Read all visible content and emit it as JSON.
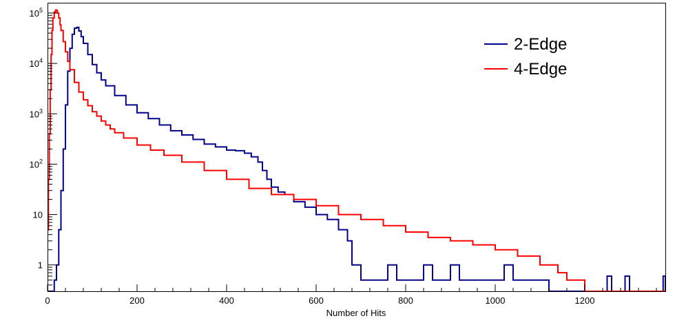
{
  "chart_data": {
    "type": "line",
    "title": "",
    "xlabel": "Number of Hits",
    "ylabel": "",
    "xlim": [
      0,
      1380
    ],
    "ylim": [
      0.3,
      160000
    ],
    "yscale": "log",
    "x_ticks": [
      0,
      200,
      400,
      600,
      800,
      1000,
      1200
    ],
    "x_tick_labels": [
      "0",
      "200",
      "400",
      "600",
      "800",
      "1000",
      "1200"
    ],
    "y_ticks": [
      1,
      10,
      100,
      1000,
      10000,
      100000
    ],
    "y_tick_labels": [
      {
        "base": "1",
        "exp": ""
      },
      {
        "base": "10",
        "exp": ""
      },
      {
        "base": "10",
        "exp": "2"
      },
      {
        "base": "10",
        "exp": "3"
      },
      {
        "base": "10",
        "exp": "4"
      },
      {
        "base": "10",
        "exp": "5"
      }
    ],
    "grid": false,
    "legend_position": "top-right",
    "series": [
      {
        "name": "2-Edge",
        "color": "#00008b",
        "x": [
          0,
          15,
          20,
          25,
          30,
          35,
          40,
          45,
          50,
          55,
          60,
          65,
          70,
          75,
          80,
          90,
          100,
          110,
          120,
          130,
          150,
          175,
          200,
          225,
          250,
          275,
          300,
          325,
          350,
          375,
          400,
          420,
          440,
          455,
          470,
          480,
          490,
          500,
          515,
          530,
          550,
          575,
          600,
          625,
          650,
          670,
          680,
          700,
          720,
          740,
          760,
          780,
          800,
          820,
          840,
          860,
          880,
          900,
          920,
          940,
          960,
          980,
          1000,
          1020,
          1040,
          1060,
          1080,
          1100,
          1120,
          1140,
          1160,
          1180,
          1200,
          1220,
          1240,
          1250,
          1260,
          1280,
          1290,
          1300,
          1320,
          1340,
          1360,
          1375,
          1380
        ],
        "y": [
          0.3,
          0.5,
          1,
          5,
          30,
          200,
          1500,
          7000,
          20000,
          38000,
          50000,
          52000,
          44000,
          34000,
          25000,
          15000,
          9500,
          6500,
          4700,
          3600,
          2300,
          1500,
          1050,
          800,
          600,
          460,
          380,
          310,
          250,
          220,
          190,
          185,
          165,
          140,
          110,
          75,
          50,
          35,
          28,
          25,
          18,
          14,
          10,
          8,
          5,
          3,
          1,
          0.5,
          0.5,
          0.5,
          1,
          0.5,
          0.5,
          0.5,
          1,
          0.5,
          0.5,
          1,
          0.5,
          0.5,
          0.5,
          0.5,
          0.5,
          1,
          0.5,
          0.5,
          0.5,
          0.5,
          0.3,
          0.3,
          0.3,
          0.3,
          0.3,
          0.3,
          0.3,
          0.6,
          0.3,
          0.3,
          0.6,
          0.3,
          0.3,
          0.3,
          0.3,
          0.6,
          0.3
        ]
      },
      {
        "name": "4-Edge",
        "color": "#ff0000",
        "x": [
          0,
          2,
          4,
          6,
          8,
          10,
          12,
          15,
          18,
          20,
          22,
          25,
          28,
          30,
          35,
          40,
          45,
          50,
          60,
          70,
          80,
          90,
          100,
          110,
          120,
          130,
          140,
          150,
          170,
          200,
          230,
          260,
          300,
          350,
          400,
          450,
          500,
          550,
          600,
          650,
          700,
          750,
          800,
          850,
          900,
          950,
          1000,
          1050,
          1100,
          1120,
          1140,
          1160,
          1180,
          1200,
          1250,
          1300,
          1350,
          1380
        ],
        "y": [
          5,
          50,
          400,
          3000,
          15000,
          45000,
          80000,
          105000,
          115000,
          112000,
          100000,
          80000,
          58000,
          45000,
          27000,
          17000,
          11000,
          7500,
          4200,
          2700,
          1900,
          1450,
          1100,
          900,
          720,
          600,
          500,
          420,
          330,
          240,
          190,
          150,
          110,
          75,
          50,
          33,
          25,
          20,
          15,
          10,
          8,
          6,
          4.5,
          3.5,
          3,
          2.5,
          2,
          1.5,
          1,
          1,
          0.7,
          0.5,
          0.5,
          0.3,
          0.3,
          0.3,
          0.3,
          0.3
        ]
      }
    ]
  }
}
